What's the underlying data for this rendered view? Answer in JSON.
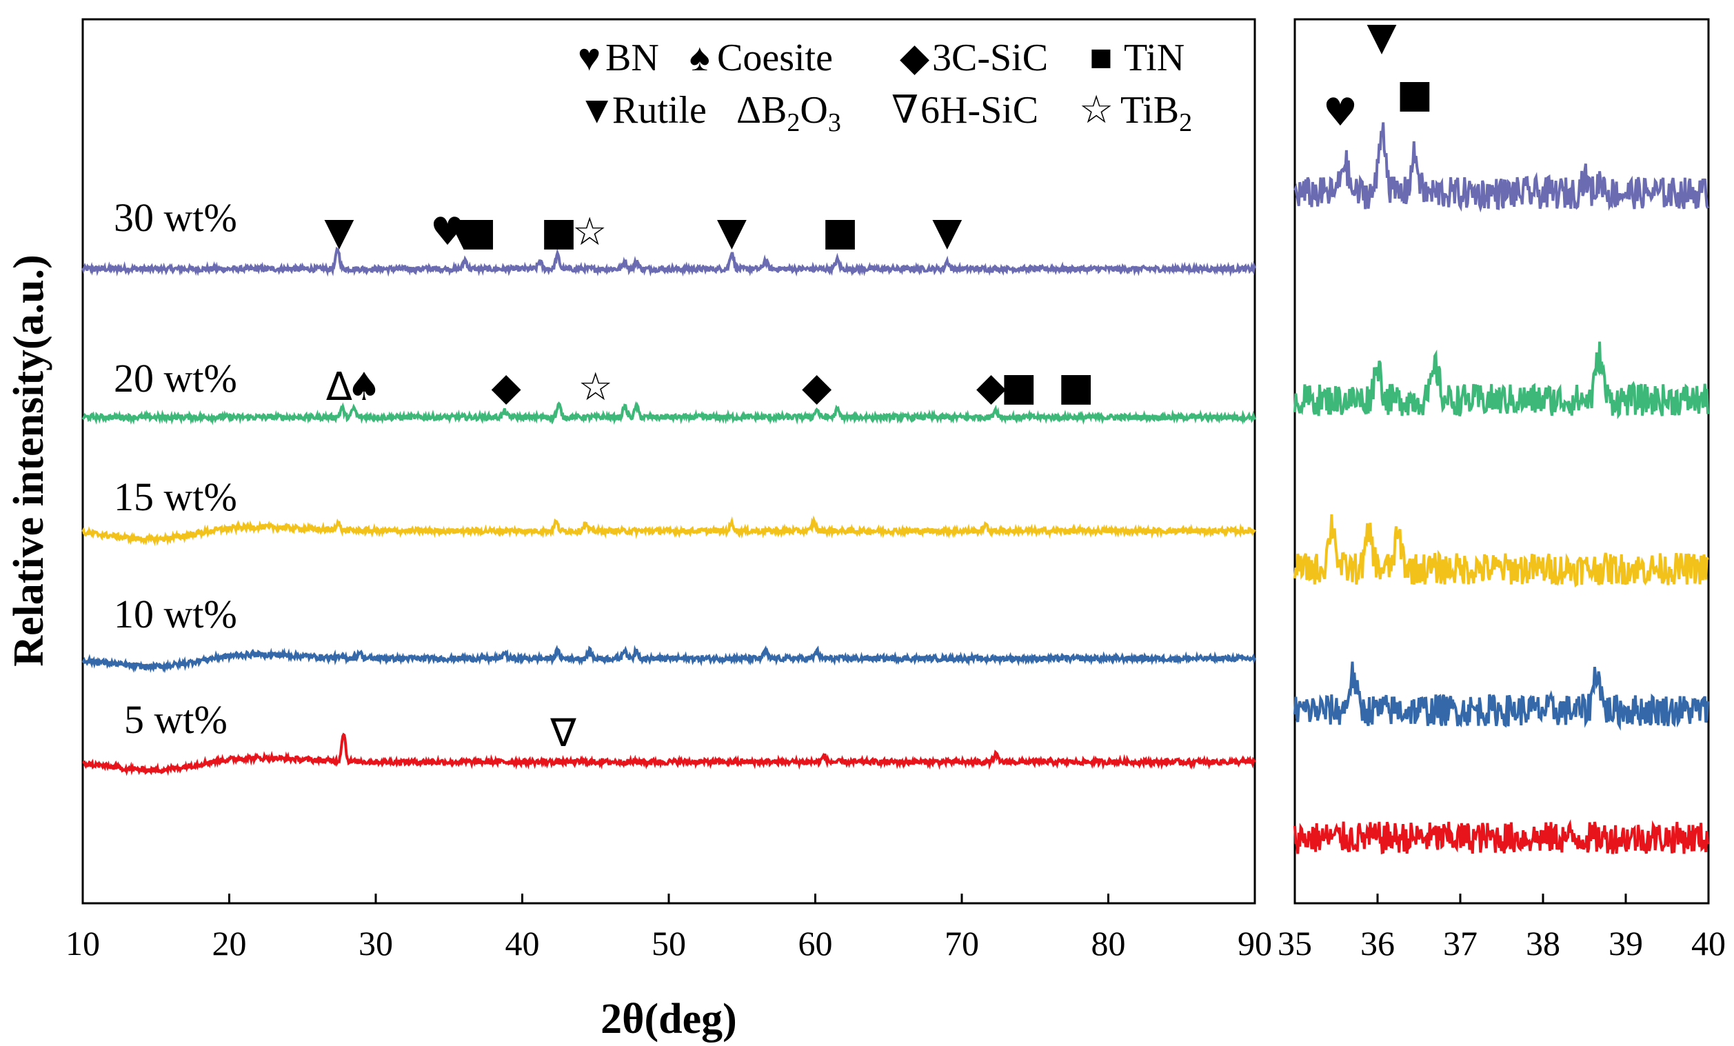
{
  "chart_data": [
    {
      "type": "line",
      "panel": "main",
      "xlabel": "2θ(deg)",
      "ylabel": "Relative intensity(a.u.)",
      "xlim": [
        10,
        90
      ],
      "xticks": [
        10,
        20,
        30,
        40,
        50,
        60,
        70,
        80,
        90
      ],
      "legend": {
        "placement": "top-right",
        "entries": [
          {
            "symbol": "♥",
            "label": "BN"
          },
          {
            "symbol": "♠",
            "label": "Coesite"
          },
          {
            "symbol": "◆",
            "label": "3C-SiC"
          },
          {
            "symbol": "■",
            "label": "TiN"
          },
          {
            "symbol": "▼",
            "label": "Rutile"
          },
          {
            "symbol": "Δ",
            "label": "B",
            "sub1": "2",
            "mid": "O",
            "sub2": "3"
          },
          {
            "symbol": "∇",
            "label": "6H-SiC"
          },
          {
            "symbol": "☆",
            "label": "TiB",
            "sub1": "2"
          }
        ]
      },
      "series": [
        {
          "name": "30 wt%",
          "color": "#6a6bb0",
          "level": 5,
          "peaks": [
            [
              27.4,
              1.3
            ],
            [
              36.1,
              0.6
            ],
            [
              41.2,
              0.5
            ],
            [
              42.4,
              0.9
            ],
            [
              47.0,
              0.5
            ],
            [
              47.8,
              0.5
            ],
            [
              54.3,
              1.1
            ],
            [
              56.6,
              0.6
            ],
            [
              61.5,
              0.6
            ],
            [
              69.0,
              0.5
            ]
          ],
          "markers": [
            {
              "symbol": "▼",
              "x": 27.5
            },
            {
              "symbol": "♥",
              "x": 34.9
            },
            {
              "symbol": "▼",
              "x": 36.0
            },
            {
              "symbol": "■",
              "x": 37.0
            },
            {
              "symbol": "■",
              "x": 42.5
            },
            {
              "symbol": "☆",
              "x": 44.6
            },
            {
              "symbol": "▼",
              "x": 54.3
            },
            {
              "symbol": "■",
              "x": 61.7
            },
            {
              "symbol": "▼",
              "x": 69.0
            }
          ]
        },
        {
          "name": "20 wt%",
          "color": "#3db878",
          "level": 4,
          "peaks": [
            [
              27.7,
              0.6
            ],
            [
              28.5,
              0.6
            ],
            [
              38.8,
              0.4
            ],
            [
              42.5,
              0.8
            ],
            [
              47.0,
              0.7
            ],
            [
              47.8,
              0.7
            ],
            [
              60.1,
              0.5
            ],
            [
              61.5,
              0.5
            ],
            [
              72.3,
              0.5
            ]
          ],
          "markers": [
            {
              "symbol": "Δ",
              "x": 27.5
            },
            {
              "symbol": "♠",
              "x": 29.2
            },
            {
              "symbol": "◆",
              "x": 38.9
            },
            {
              "symbol": "☆",
              "x": 45.0
            },
            {
              "symbol": "◆",
              "x": 60.1
            },
            {
              "symbol": "◆",
              "x": 72.0
            },
            {
              "symbol": "■",
              "x": 73.9
            },
            {
              "symbol": "■",
              "x": 77.8
            }
          ]
        },
        {
          "name": "15 wt%",
          "color": "#f2c21b",
          "level": 3,
          "peaks": [
            [
              27.4,
              0.5
            ],
            [
              42.3,
              0.6
            ],
            [
              44.3,
              0.5
            ],
            [
              54.3,
              0.5
            ],
            [
              59.9,
              0.6
            ],
            [
              71.6,
              0.4
            ]
          ],
          "markers": []
        },
        {
          "name": "10 wt%",
          "color": "#3468a8",
          "level": 2,
          "peaks": [
            [
              28.9,
              0.4
            ],
            [
              38.8,
              0.4
            ],
            [
              42.4,
              0.5
            ],
            [
              44.6,
              0.5
            ],
            [
              47.0,
              0.6
            ],
            [
              47.8,
              0.6
            ],
            [
              56.6,
              0.5
            ],
            [
              60.1,
              0.5
            ]
          ],
          "markers": []
        },
        {
          "name": "5 wt%",
          "color": "#e8141c",
          "level": 1,
          "peaks": [
            [
              27.8,
              1.9
            ],
            [
              60.6,
              0.4
            ],
            [
              72.3,
              0.5
            ]
          ],
          "markers": [
            {
              "symbol": "∇",
              "x": 42.8
            }
          ]
        }
      ]
    },
    {
      "type": "line",
      "panel": "zoom-inset",
      "xlim": [
        35,
        40
      ],
      "xticks": [
        35,
        36,
        37,
        38,
        39,
        40
      ],
      "series": [
        {
          "name": "30 wt%",
          "color": "#6a6bb0",
          "peaks": [
            [
              35.6,
              2.6
            ],
            [
              36.06,
              5.2
            ],
            [
              36.45,
              3.0
            ],
            [
              38.5,
              1.2
            ],
            [
              38.7,
              1.0
            ]
          ],
          "markers": [
            {
              "symbol": "♥",
              "x": 35.55
            },
            {
              "symbol": "▼",
              "x": 36.05
            },
            {
              "symbol": "■",
              "x": 36.45
            }
          ]
        },
        {
          "name": "20 wt%",
          "color": "#3db878",
          "peaks": [
            [
              36.0,
              2.8
            ],
            [
              36.7,
              2.6
            ],
            [
              38.68,
              3.6
            ]
          ],
          "markers": []
        },
        {
          "name": "15 wt%",
          "color": "#f2c21b",
          "peaks": [
            [
              35.45,
              3.6
            ],
            [
              35.9,
              2.8
            ],
            [
              36.25,
              2.6
            ]
          ],
          "markers": []
        },
        {
          "name": "10 wt%",
          "color": "#3468a8",
          "peaks": [
            [
              35.7,
              2.8
            ],
            [
              38.65,
              3.2
            ]
          ],
          "markers": []
        },
        {
          "name": "5 wt%",
          "color": "#e8141c",
          "peaks": [],
          "markers": []
        }
      ]
    }
  ]
}
